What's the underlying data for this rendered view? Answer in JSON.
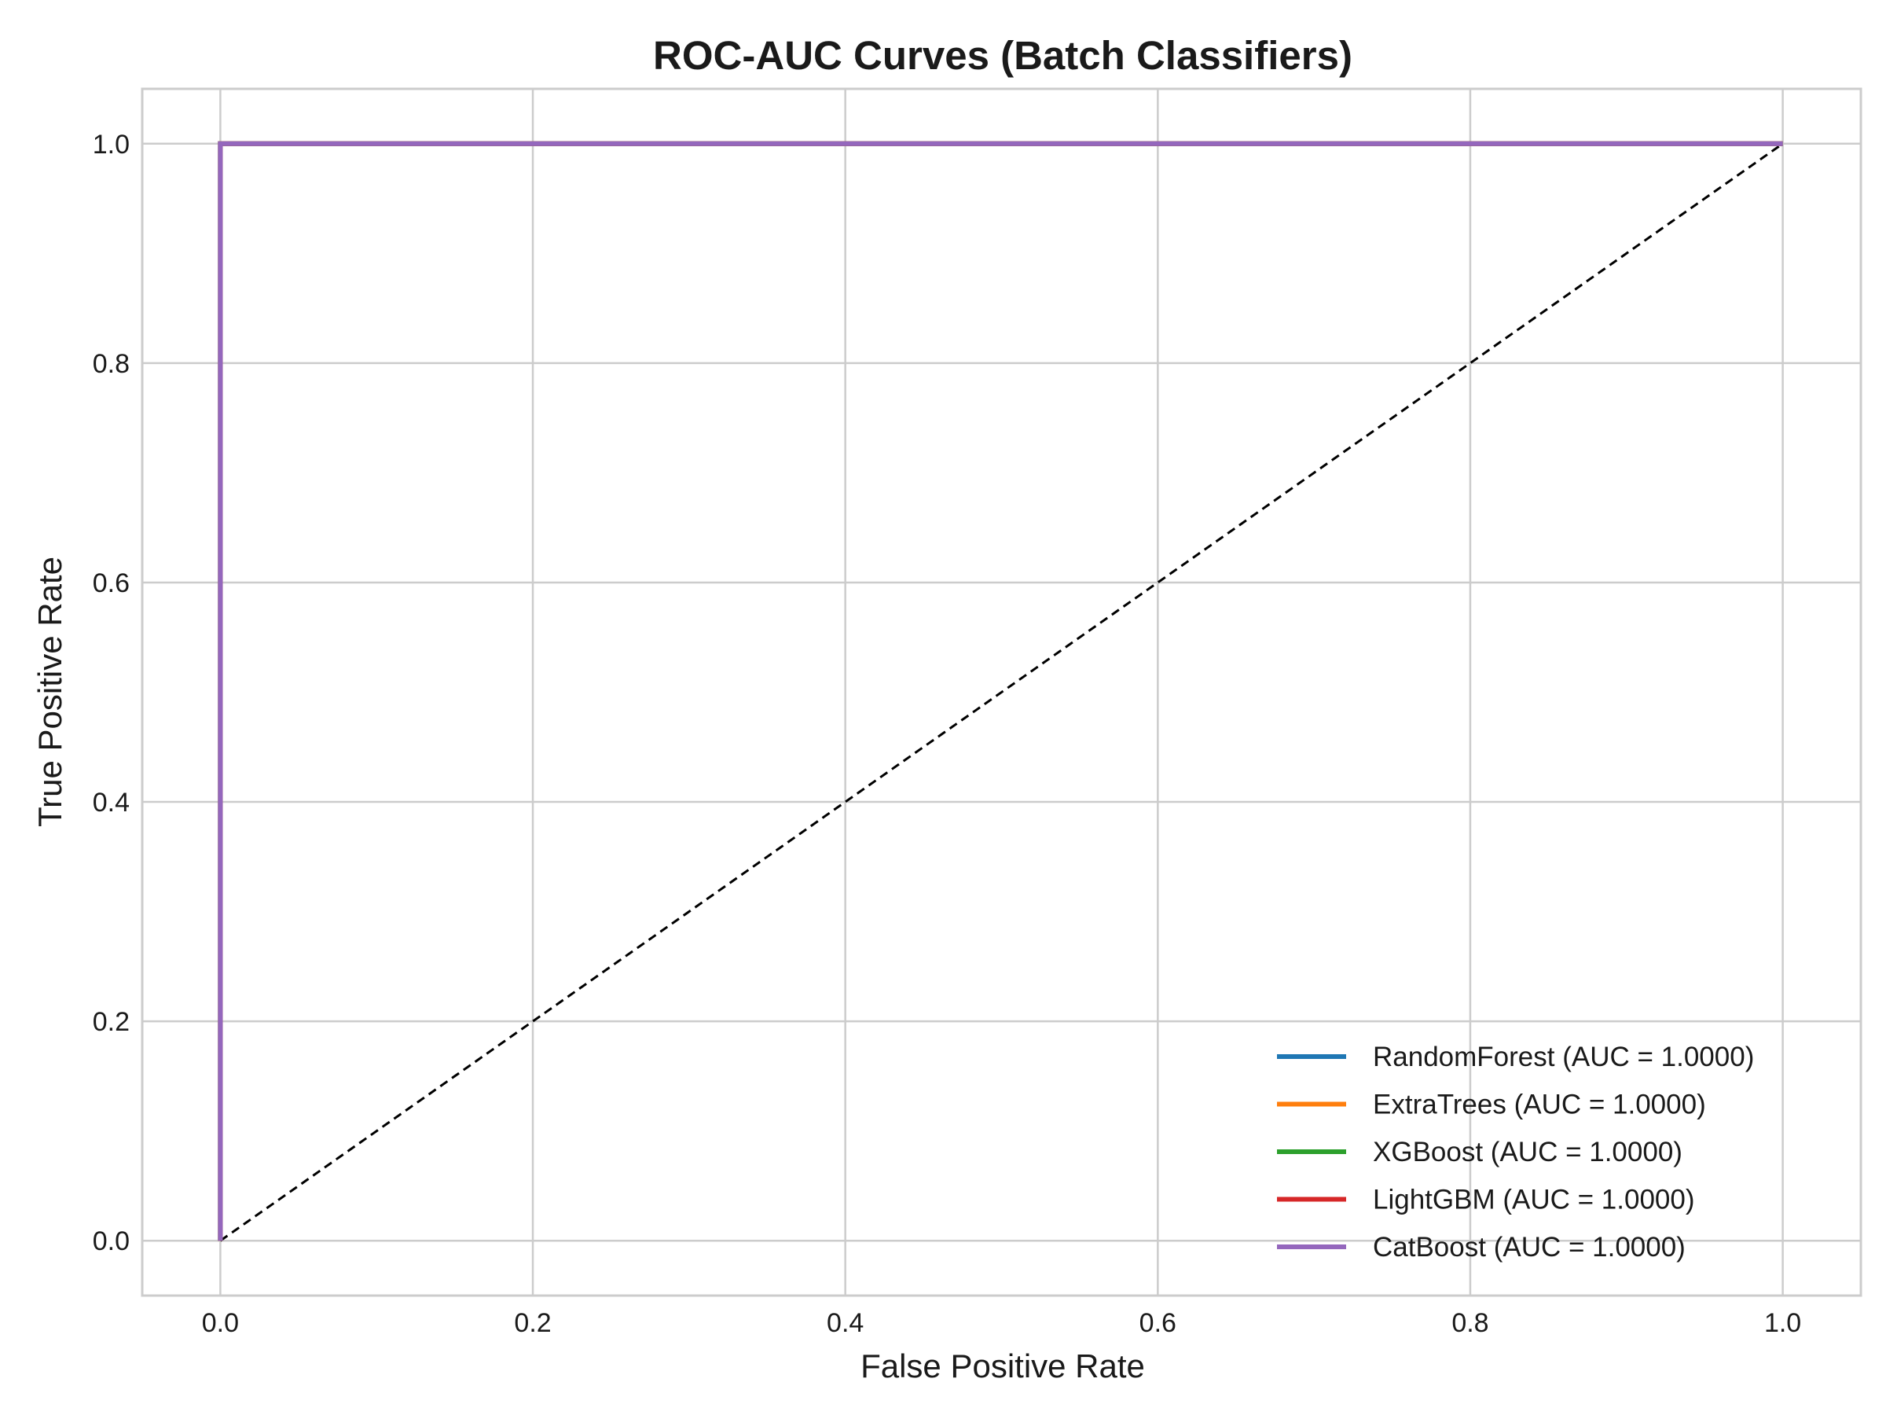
{
  "chart_data": {
    "type": "line",
    "title": "ROC-AUC Curves (Batch Classifiers)",
    "xlabel": "False Positive Rate",
    "ylabel": "True Positive Rate",
    "xlim": [
      -0.05,
      1.05
    ],
    "ylim": [
      -0.05,
      1.05
    ],
    "xticks": [
      "0.0",
      "0.2",
      "0.4",
      "0.6",
      "0.8",
      "1.0"
    ],
    "yticks": [
      "0.0",
      "0.2",
      "0.4",
      "0.6",
      "0.8",
      "1.0"
    ],
    "grid": true,
    "legend_position": "lower-right",
    "series": [
      {
        "name": "RandomForest (AUC = 1.0000)",
        "color": "#1f77b4",
        "x": [
          0,
          0,
          1
        ],
        "y": [
          0,
          1,
          1
        ]
      },
      {
        "name": "ExtraTrees (AUC = 1.0000)",
        "color": "#ff7f0e",
        "x": [
          0,
          0,
          1
        ],
        "y": [
          0,
          1,
          1
        ]
      },
      {
        "name": "XGBoost (AUC = 1.0000)",
        "color": "#2ca02c",
        "x": [
          0,
          0,
          1
        ],
        "y": [
          0,
          1,
          1
        ]
      },
      {
        "name": "LightGBM (AUC = 1.0000)",
        "color": "#d62728",
        "x": [
          0,
          0,
          1
        ],
        "y": [
          0,
          1,
          1
        ]
      },
      {
        "name": "CatBoost (AUC = 1.0000)",
        "color": "#9467bd",
        "x": [
          0,
          0,
          1
        ],
        "y": [
          0,
          1,
          1
        ]
      }
    ],
    "reference_line": {
      "style": "dashed",
      "color": "#000000",
      "x": [
        0,
        1
      ],
      "y": [
        0,
        1
      ]
    }
  }
}
